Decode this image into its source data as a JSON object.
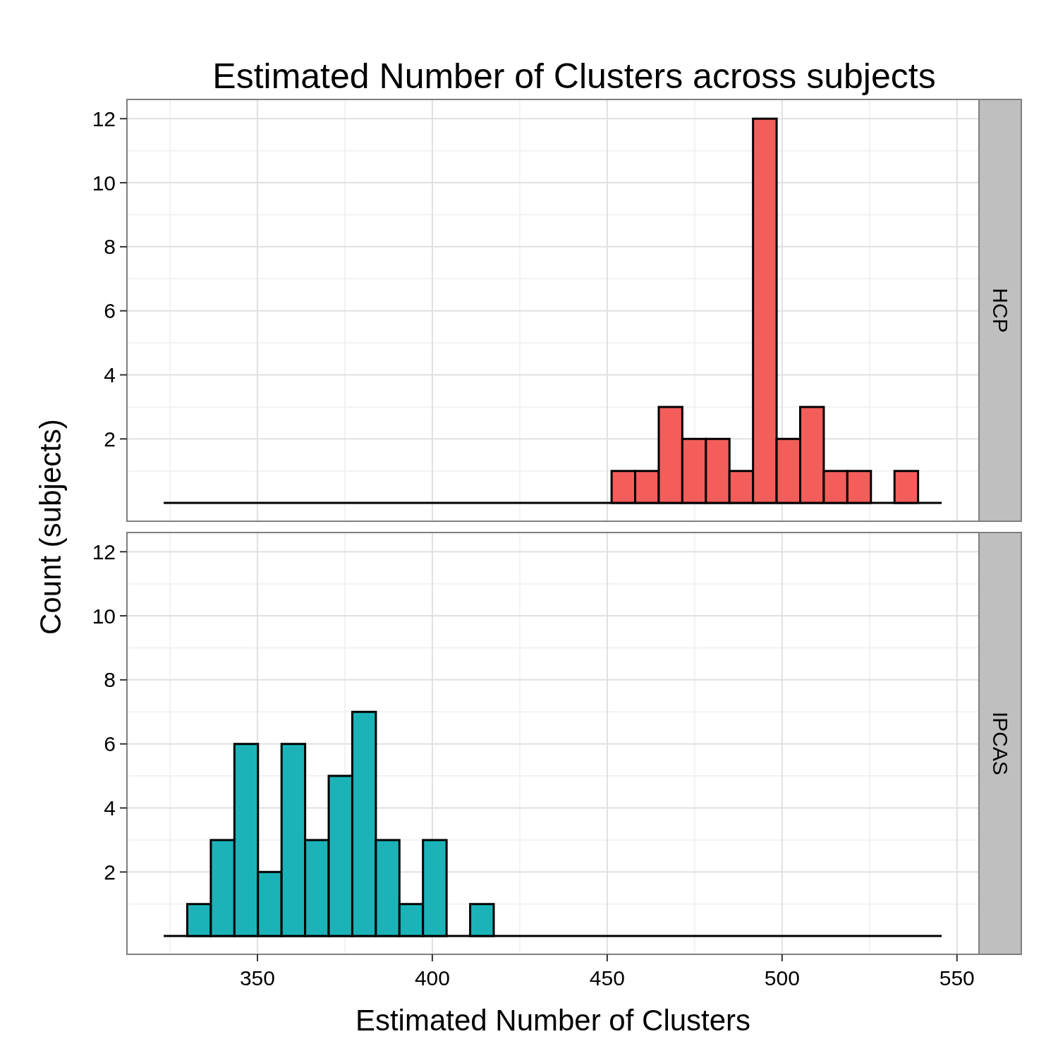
{
  "chart_data": [
    {
      "type": "histogram",
      "title": "Estimated Number of Clusters across subjects",
      "subtitle": "HCP",
      "ylabel": "Count (subjects)",
      "bins": [
        323.2,
        329.94,
        336.68,
        343.42,
        350.16,
        356.9,
        363.64,
        370.38,
        377.12,
        383.86,
        390.6,
        397.34,
        404.08,
        410.82,
        417.56,
        424.3,
        431.04,
        437.78,
        444.52,
        451.26,
        458,
        464.74,
        471.48,
        478.22,
        484.96,
        491.7,
        498.44,
        505.18,
        511.92,
        518.66,
        525.4,
        532.14,
        538.88,
        545.62
      ],
      "values": [
        0,
        0,
        0,
        0,
        0,
        0,
        0,
        0,
        0,
        0,
        0,
        0,
        0,
        0,
        0,
        0,
        0,
        0,
        0,
        1,
        1,
        3,
        2,
        2,
        1,
        12,
        2,
        3,
        1,
        1,
        0,
        1,
        0
      ],
      "color": "#f35e5a",
      "xlim": [
        312.7,
        556.3
      ],
      "xticks": [
        350,
        400,
        450,
        500,
        550
      ],
      "ylim": [
        -0.57,
        12.6
      ],
      "yticks": [
        2,
        4,
        6,
        8,
        10,
        12
      ],
      "grid": true,
      "tick_labels": "y"
    },
    {
      "type": "histogram",
      "subtitle": "IPCAS",
      "xlabel": "Estimated Number of Clusters",
      "bins": [
        323.2,
        329.94,
        336.68,
        343.42,
        350.16,
        356.9,
        363.64,
        370.38,
        377.12,
        383.86,
        390.6,
        397.34,
        404.08,
        410.82,
        417.56,
        424.3,
        431.04,
        437.78,
        444.52,
        451.26,
        458,
        464.74,
        471.48,
        478.22,
        484.96,
        491.7,
        498.44,
        505.18,
        511.92,
        518.66,
        525.4,
        532.14,
        538.88,
        545.62
      ],
      "values": [
        0,
        1,
        3,
        6,
        2,
        6,
        3,
        5,
        7,
        3,
        1,
        3,
        0,
        1,
        0,
        0,
        0,
        0,
        0,
        0,
        0,
        0,
        0,
        0,
        0,
        0,
        0,
        0,
        0,
        0,
        0,
        0,
        0
      ],
      "color": "#1bb3b8",
      "xlim": [
        312.7,
        556.3
      ],
      "xticks": [
        350,
        400,
        450,
        500,
        550
      ],
      "ylim": [
        -0.57,
        12.6
      ],
      "yticks": [
        2,
        4,
        6,
        8,
        10,
        12
      ],
      "grid": true
    }
  ]
}
